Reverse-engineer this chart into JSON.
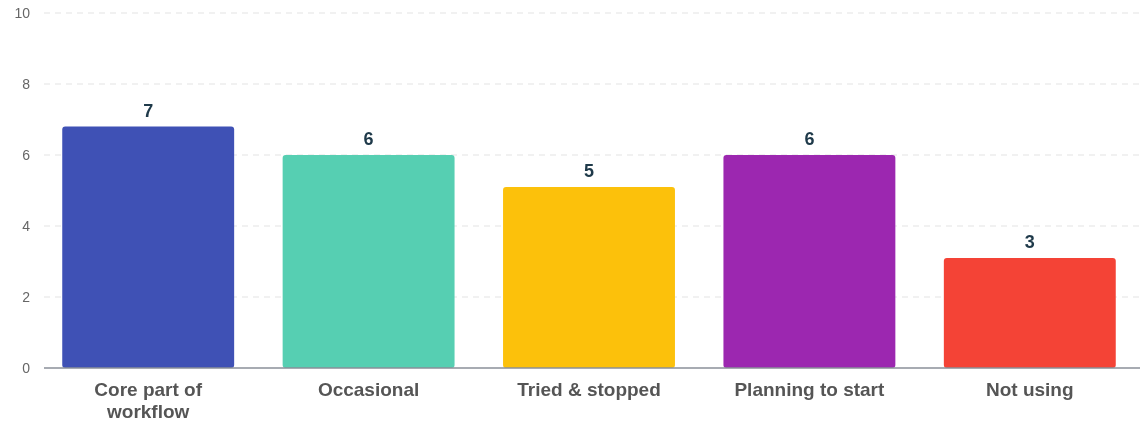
{
  "chart_data": {
    "type": "bar",
    "categories": [
      "Core part of workflow",
      "Occasional",
      "Tried & stopped",
      "Planning to start",
      "Not using"
    ],
    "values": [
      6.8,
      6,
      5.1,
      6,
      3.1
    ],
    "value_labels": [
      "7",
      "6",
      "5",
      "6",
      "3"
    ],
    "colors": [
      "#3f51b5",
      "#56cfb2",
      "#fcc10b",
      "#9c27b0",
      "#f44336"
    ],
    "ylim": [
      0,
      10
    ],
    "yticks": [
      0,
      2,
      4,
      6,
      8,
      10
    ],
    "grid": "y"
  }
}
